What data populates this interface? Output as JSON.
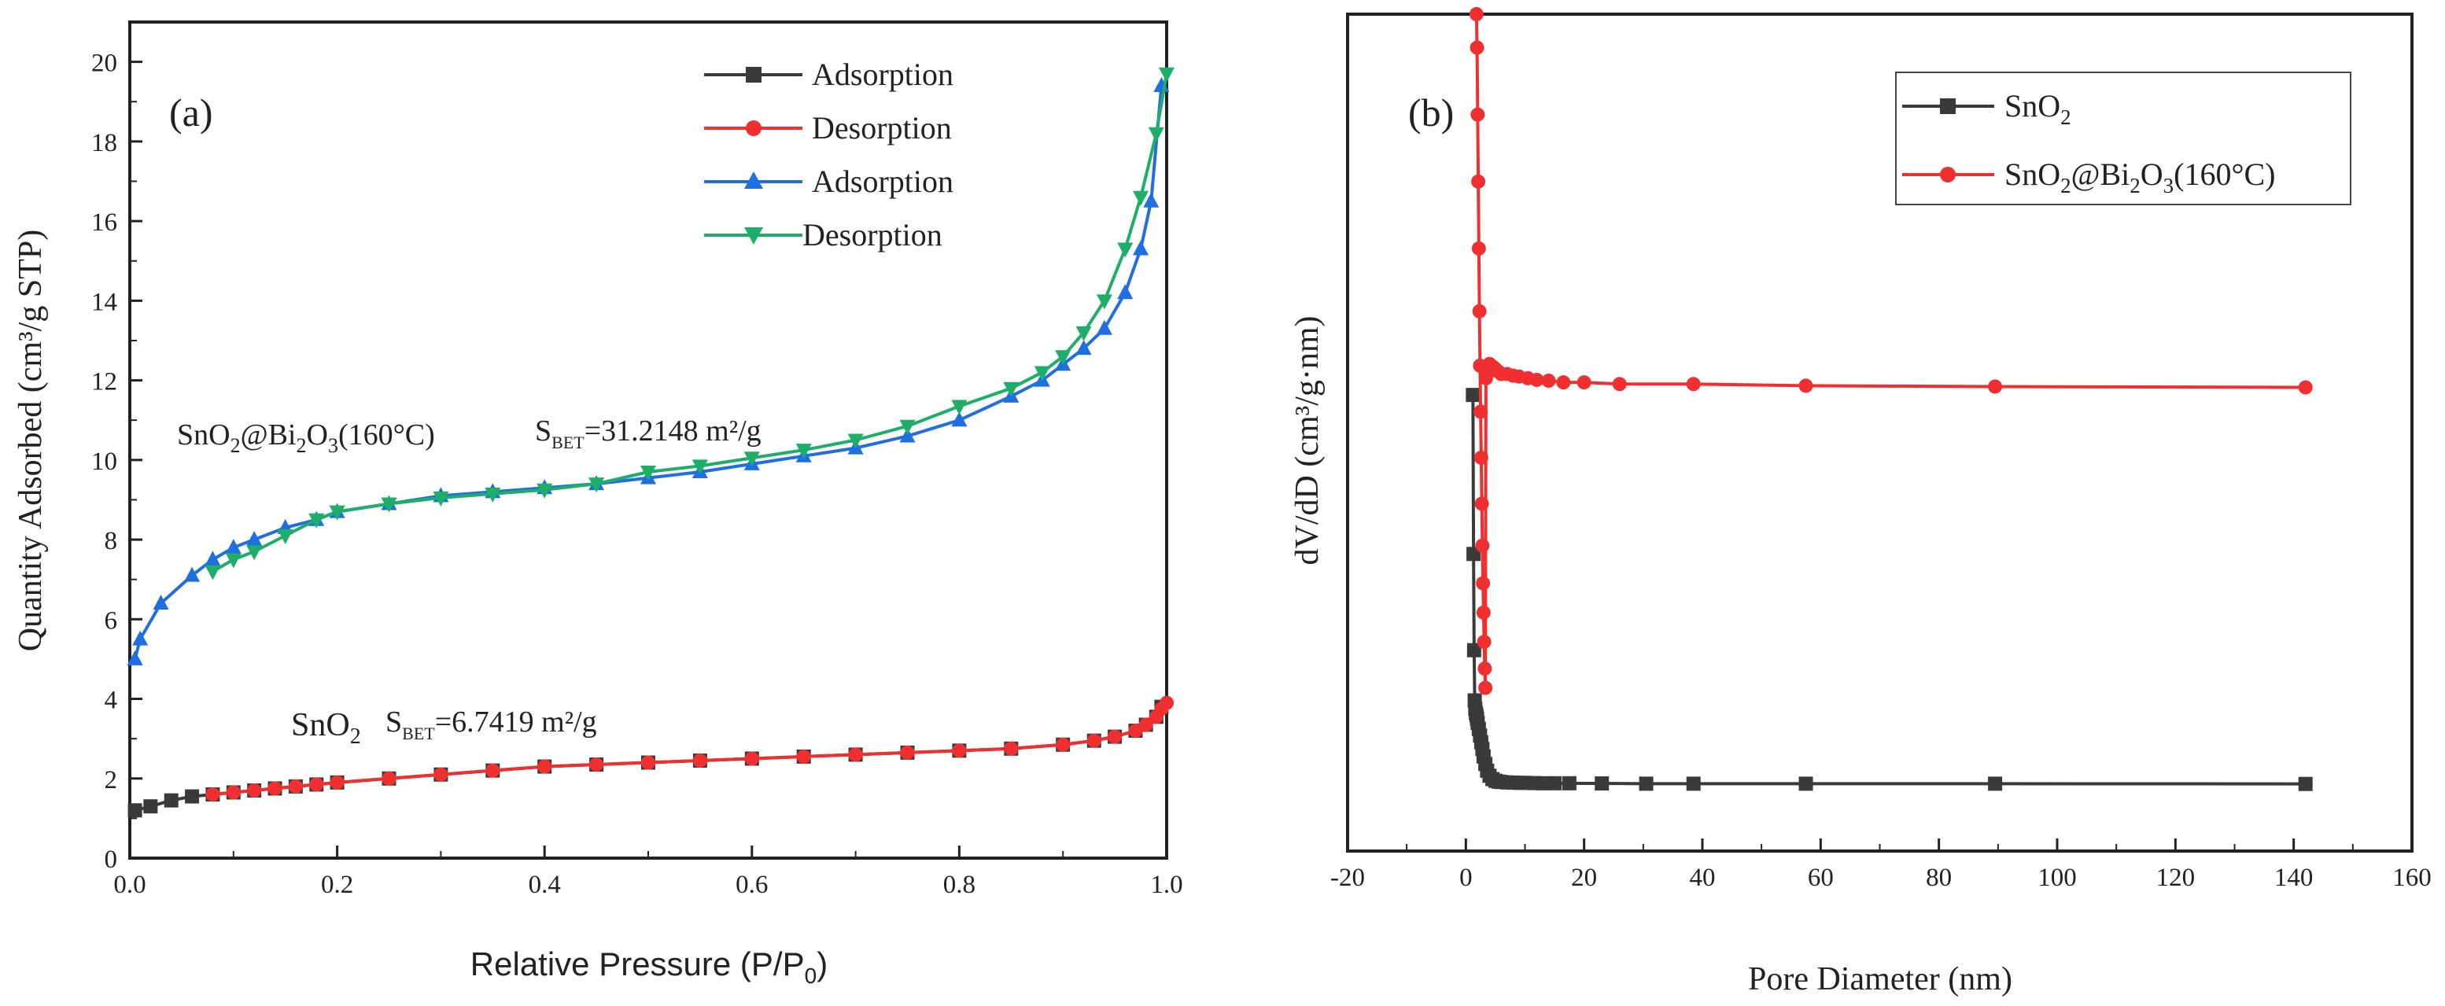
{
  "chart_data": [
    {
      "type": "line",
      "panel_label": "(a)",
      "xlabel": "Relative Pressure (P/P0)",
      "ylabel": "Quantity Adsorbed (cm³/g STP)",
      "xlim": [
        0.0,
        1.0
      ],
      "ylim": [
        0,
        21
      ],
      "xticks": [
        "0.0",
        "0.2",
        "0.4",
        "0.6",
        "0.8",
        "1.0"
      ],
      "yticks": [
        "0",
        "2",
        "4",
        "6",
        "8",
        "10",
        "12",
        "14",
        "16",
        "18",
        "20"
      ],
      "legend_position": "top-right",
      "annotations": {
        "sno2_bi": {
          "base": "SnO",
          "s1": "2",
          "mid": "@Bi",
          "s2": "2",
          "tail": "O",
          "s3": "3",
          "end": "(160°C)"
        },
        "sbet_bi": {
          "S": "S",
          "sub": "BET",
          "text": "=31.2148 m²/g"
        },
        "sno2": {
          "base": "SnO",
          "s1": "2"
        },
        "sbet_sno2": {
          "S": "S",
          "sub": "BET",
          "text": "=6.7419 m²/g"
        }
      },
      "series": [
        {
          "name": "Adsorption",
          "color": "#3a3a3a",
          "marker": "square",
          "x": [
            0.005,
            0.02,
            0.04,
            0.06,
            0.08,
            0.1,
            0.12,
            0.14,
            0.16,
            0.18,
            0.2,
            0.25,
            0.3,
            0.35,
            0.4,
            0.45,
            0.5,
            0.55,
            0.6,
            0.65,
            0.7,
            0.75,
            0.8,
            0.85,
            0.9,
            0.93,
            0.95,
            0.97,
            0.98,
            0.99,
            0.995
          ],
          "y": [
            1.2,
            1.3,
            1.45,
            1.55,
            1.6,
            1.65,
            1.7,
            1.75,
            1.8,
            1.85,
            1.9,
            2.0,
            2.1,
            2.2,
            2.3,
            2.35,
            2.4,
            2.45,
            2.5,
            2.55,
            2.6,
            2.65,
            2.7,
            2.75,
            2.85,
            2.95,
            3.05,
            3.2,
            3.35,
            3.55,
            3.8
          ]
        },
        {
          "name": "Desorption",
          "color": "#f03030",
          "marker": "circle",
          "x": [
            0.08,
            0.1,
            0.12,
            0.14,
            0.16,
            0.18,
            0.2,
            0.25,
            0.3,
            0.35,
            0.4,
            0.45,
            0.5,
            0.55,
            0.6,
            0.65,
            0.7,
            0.75,
            0.8,
            0.85,
            0.9,
            0.93,
            0.95,
            0.97,
            0.98,
            0.99,
            0.995,
            1.0
          ],
          "y": [
            1.6,
            1.65,
            1.7,
            1.75,
            1.8,
            1.85,
            1.9,
            2.0,
            2.1,
            2.2,
            2.3,
            2.35,
            2.4,
            2.45,
            2.5,
            2.55,
            2.6,
            2.65,
            2.7,
            2.75,
            2.85,
            2.95,
            3.05,
            3.2,
            3.35,
            3.55,
            3.75,
            3.9
          ]
        },
        {
          "name": "Adsorption",
          "color": "#1f6fe0",
          "marker": "triangle-up",
          "x": [
            0.005,
            0.01,
            0.03,
            0.06,
            0.08,
            0.1,
            0.12,
            0.15,
            0.18,
            0.2,
            0.25,
            0.3,
            0.35,
            0.4,
            0.45,
            0.5,
            0.55,
            0.6,
            0.65,
            0.7,
            0.75,
            0.8,
            0.85,
            0.88,
            0.9,
            0.92,
            0.94,
            0.96,
            0.975,
            0.985,
            0.995
          ],
          "y": [
            5.0,
            5.5,
            6.4,
            7.1,
            7.5,
            7.8,
            8.0,
            8.3,
            8.5,
            8.7,
            8.9,
            9.1,
            9.2,
            9.3,
            9.4,
            9.55,
            9.7,
            9.9,
            10.1,
            10.3,
            10.6,
            11.0,
            11.6,
            12.0,
            12.4,
            12.8,
            13.3,
            14.2,
            15.3,
            16.5,
            19.4
          ]
        },
        {
          "name": "Desorption",
          "color": "#1fad6a",
          "marker": "triangle-down",
          "x": [
            0.08,
            0.1,
            0.12,
            0.15,
            0.18,
            0.2,
            0.25,
            0.3,
            0.35,
            0.4,
            0.45,
            0.5,
            0.55,
            0.6,
            0.65,
            0.7,
            0.75,
            0.8,
            0.85,
            0.88,
            0.9,
            0.92,
            0.94,
            0.96,
            0.975,
            0.99,
            1.0
          ],
          "y": [
            7.2,
            7.5,
            7.7,
            8.1,
            8.5,
            8.7,
            8.9,
            9.05,
            9.15,
            9.25,
            9.4,
            9.7,
            9.85,
            10.05,
            10.25,
            10.5,
            10.85,
            11.35,
            11.8,
            12.2,
            12.6,
            13.2,
            14.0,
            15.3,
            16.6,
            18.2,
            19.7
          ]
        }
      ]
    },
    {
      "type": "line",
      "panel_label": "(b)",
      "xlabel": "Pore Diameter (nm)",
      "ylabel": "dV/dD  (cm³/g·nm)",
      "xlim": [
        -20,
        160
      ],
      "ylim": [
        0,
        100
      ],
      "xticks": [
        "-20",
        "0",
        "20",
        "40",
        "60",
        "80",
        "100",
        "120",
        "140",
        "160"
      ],
      "yticks": [],
      "legend_position": "top-right",
      "series": [
        {
          "name": "SnO2",
          "label_parts": {
            "base": "SnO",
            "s1": "2"
          },
          "color": "#3a3a3a",
          "marker": "square",
          "x": [
            1.2,
            1.3,
            1.4,
            1.5,
            1.6,
            1.7,
            1.8,
            1.9,
            2.0,
            2.2,
            2.4,
            2.6,
            2.8,
            3.0,
            3.3,
            3.6,
            4.0,
            4.5,
            5.0,
            5.5,
            6.0,
            7.0,
            8.0,
            9.0,
            10.0,
            11.5,
            13.0,
            15.0,
            17.5,
            23.0,
            30.5,
            38.5,
            57.5,
            89.5,
            142.0
          ],
          "y": [
            54.5,
            35.5,
            24.0,
            18.0,
            17.0,
            16.5,
            16.2,
            15.8,
            15.3,
            14.6,
            13.8,
            13.0,
            12.2,
            11.3,
            10.4,
            9.6,
            9.0,
            8.6,
            8.4,
            8.3,
            8.25,
            8.2,
            8.18,
            8.15,
            8.15,
            8.12,
            8.1,
            8.1,
            8.1,
            8.08,
            8.05,
            8.05,
            8.05,
            8.05,
            8.02
          ]
        },
        {
          "name": "SnO2@Bi2O3(160°C)",
          "label_parts": {
            "base": "SnO",
            "s1": "2",
            "mid": "@Bi",
            "s2": "2",
            "tail": "O",
            "s3": "3",
            "end": "(160°C)"
          },
          "color": "#f03030",
          "marker": "circle",
          "x": [
            1.8,
            1.9,
            2.0,
            2.1,
            2.2,
            2.3,
            2.4,
            2.5,
            2.6,
            2.7,
            2.8,
            2.9,
            3.0,
            3.1,
            3.2,
            3.3,
            3.4,
            3.6,
            3.8,
            4.0,
            4.3,
            4.7,
            5.0,
            5.5,
            6.0,
            7.0,
            8.0,
            9.0,
            10.5,
            12.0,
            14.0,
            16.5,
            20.0,
            26.0,
            38.5,
            57.5,
            89.5,
            142.0
          ],
          "y": [
            100.0,
            96.0,
            88.0,
            80.0,
            72.0,
            64.5,
            58.0,
            52.5,
            47.0,
            41.5,
            36.5,
            32.0,
            28.5,
            25.0,
            21.8,
            19.5,
            56.5,
            57.0,
            57.8,
            58.2,
            58.0,
            57.8,
            57.6,
            57.3,
            57.0,
            57.0,
            56.8,
            56.7,
            56.5,
            56.3,
            56.2,
            56.0,
            56.0,
            55.8,
            55.8,
            55.6,
            55.5,
            55.4
          ]
        }
      ]
    }
  ]
}
